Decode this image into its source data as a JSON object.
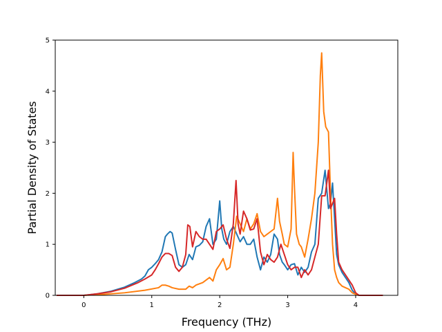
{
  "chart_data": {
    "type": "line",
    "title": "",
    "xlabel": "Frequency (THz)",
    "ylabel": "Partial Density of States",
    "xlim": [
      -0.42,
      4.62
    ],
    "ylim": [
      0,
      5
    ],
    "xticks": [
      0,
      1,
      2,
      3,
      4
    ],
    "yticks": [
      0,
      1,
      2,
      3,
      4,
      5
    ],
    "grid": false,
    "legend": "none",
    "series": [
      {
        "color": "#1f77b4",
        "x": [
          -0.4,
          0.0,
          0.2,
          0.4,
          0.6,
          0.75,
          0.85,
          0.9,
          0.95,
          1.0,
          1.05,
          1.1,
          1.15,
          1.2,
          1.23,
          1.27,
          1.3,
          1.35,
          1.4,
          1.45,
          1.5,
          1.55,
          1.6,
          1.65,
          1.7,
          1.75,
          1.8,
          1.85,
          1.9,
          1.95,
          2.0,
          2.03,
          2.06,
          2.1,
          2.15,
          2.2,
          2.25,
          2.3,
          2.35,
          2.4,
          2.45,
          2.5,
          2.55,
          2.6,
          2.65,
          2.7,
          2.75,
          2.8,
          2.85,
          2.88,
          2.92,
          2.95,
          3.0,
          3.05,
          3.1,
          3.15,
          3.2,
          3.25,
          3.3,
          3.35,
          3.4,
          3.45,
          3.5,
          3.55,
          3.6,
          3.63,
          3.66,
          3.69,
          3.72,
          3.75,
          3.8,
          3.85,
          3.9,
          3.95,
          4.0,
          4.05,
          4.4
        ],
        "y": [
          0,
          0,
          0.03,
          0.08,
          0.16,
          0.25,
          0.32,
          0.38,
          0.5,
          0.55,
          0.62,
          0.7,
          0.85,
          1.15,
          1.2,
          1.25,
          1.22,
          0.9,
          0.6,
          0.55,
          0.6,
          0.8,
          0.7,
          0.95,
          0.98,
          1.05,
          1.35,
          1.5,
          1.0,
          1.1,
          1.85,
          1.3,
          1.1,
          1.0,
          1.25,
          1.35,
          1.2,
          1.05,
          1.15,
          1.0,
          1.0,
          1.1,
          0.75,
          0.5,
          0.75,
          0.65,
          0.8,
          1.2,
          1.1,
          0.8,
          0.65,
          0.6,
          0.5,
          0.6,
          0.62,
          0.4,
          0.55,
          0.45,
          0.55,
          0.85,
          1.0,
          1.9,
          2.0,
          2.45,
          1.7,
          1.8,
          2.2,
          1.5,
          0.8,
          0.6,
          0.45,
          0.35,
          0.25,
          0.1,
          0.02,
          0,
          0
        ]
      },
      {
        "color": "#ff7f0e",
        "x": [
          -0.4,
          0.0,
          0.3,
          0.6,
          0.9,
          1.1,
          1.15,
          1.2,
          1.25,
          1.3,
          1.4,
          1.5,
          1.55,
          1.6,
          1.65,
          1.75,
          1.85,
          1.9,
          1.95,
          2.0,
          2.05,
          2.1,
          2.15,
          2.2,
          2.25,
          2.3,
          2.35,
          2.4,
          2.45,
          2.5,
          2.55,
          2.6,
          2.65,
          2.7,
          2.75,
          2.8,
          2.85,
          2.88,
          2.92,
          2.95,
          3.0,
          3.05,
          3.08,
          3.1,
          3.13,
          3.17,
          3.2,
          3.25,
          3.3,
          3.35,
          3.4,
          3.45,
          3.48,
          3.5,
          3.53,
          3.56,
          3.6,
          3.63,
          3.66,
          3.69,
          3.72,
          3.75,
          3.8,
          3.85,
          3.9,
          3.95,
          4.0,
          4.05,
          4.4
        ],
        "y": [
          0,
          0,
          0.02,
          0.05,
          0.1,
          0.15,
          0.2,
          0.2,
          0.18,
          0.15,
          0.12,
          0.12,
          0.18,
          0.15,
          0.2,
          0.25,
          0.35,
          0.28,
          0.5,
          0.6,
          0.72,
          0.5,
          0.55,
          1.0,
          1.55,
          1.4,
          1.25,
          1.5,
          1.3,
          1.4,
          1.6,
          1.25,
          1.15,
          1.2,
          1.25,
          1.3,
          1.9,
          1.45,
          1.2,
          1.0,
          0.95,
          1.3,
          2.8,
          2.1,
          1.2,
          1.0,
          0.95,
          0.75,
          1.1,
          1.5,
          2.0,
          3.0,
          4.3,
          4.75,
          3.6,
          3.3,
          3.2,
          2.0,
          1.0,
          0.5,
          0.35,
          0.25,
          0.18,
          0.15,
          0.12,
          0.05,
          0.02,
          0,
          0
        ]
      },
      {
        "color": "#d62728",
        "x": [
          -0.4,
          0.0,
          0.2,
          0.4,
          0.6,
          0.8,
          0.9,
          1.0,
          1.05,
          1.1,
          1.15,
          1.2,
          1.25,
          1.3,
          1.35,
          1.4,
          1.45,
          1.5,
          1.53,
          1.56,
          1.6,
          1.65,
          1.7,
          1.75,
          1.8,
          1.85,
          1.9,
          1.95,
          2.0,
          2.05,
          2.1,
          2.15,
          2.2,
          2.24,
          2.27,
          2.3,
          2.35,
          2.4,
          2.45,
          2.5,
          2.55,
          2.6,
          2.65,
          2.7,
          2.75,
          2.8,
          2.85,
          2.9,
          2.95,
          3.0,
          3.05,
          3.1,
          3.15,
          3.2,
          3.25,
          3.3,
          3.35,
          3.4,
          3.45,
          3.5,
          3.55,
          3.6,
          3.63,
          3.66,
          3.69,
          3.72,
          3.75,
          3.8,
          3.85,
          3.9,
          3.95,
          4.0,
          4.05,
          4.4
        ],
        "y": [
          0,
          0,
          0.03,
          0.07,
          0.14,
          0.25,
          0.32,
          0.4,
          0.5,
          0.62,
          0.75,
          0.82,
          0.82,
          0.78,
          0.55,
          0.47,
          0.55,
          0.8,
          1.38,
          1.35,
          0.95,
          1.25,
          1.15,
          1.1,
          1.1,
          1.0,
          0.9,
          1.25,
          1.3,
          1.38,
          1.1,
          0.92,
          1.4,
          2.25,
          1.4,
          1.2,
          1.65,
          1.5,
          1.28,
          1.3,
          1.5,
          0.85,
          0.6,
          0.8,
          0.7,
          0.65,
          0.75,
          1.0,
          0.8,
          0.6,
          0.5,
          0.55,
          0.55,
          0.35,
          0.5,
          0.4,
          0.5,
          0.75,
          1.0,
          1.95,
          1.95,
          2.45,
          1.7,
          1.8,
          1.9,
          1.2,
          0.65,
          0.5,
          0.4,
          0.3,
          0.2,
          0.05,
          0,
          0
        ]
      }
    ]
  }
}
